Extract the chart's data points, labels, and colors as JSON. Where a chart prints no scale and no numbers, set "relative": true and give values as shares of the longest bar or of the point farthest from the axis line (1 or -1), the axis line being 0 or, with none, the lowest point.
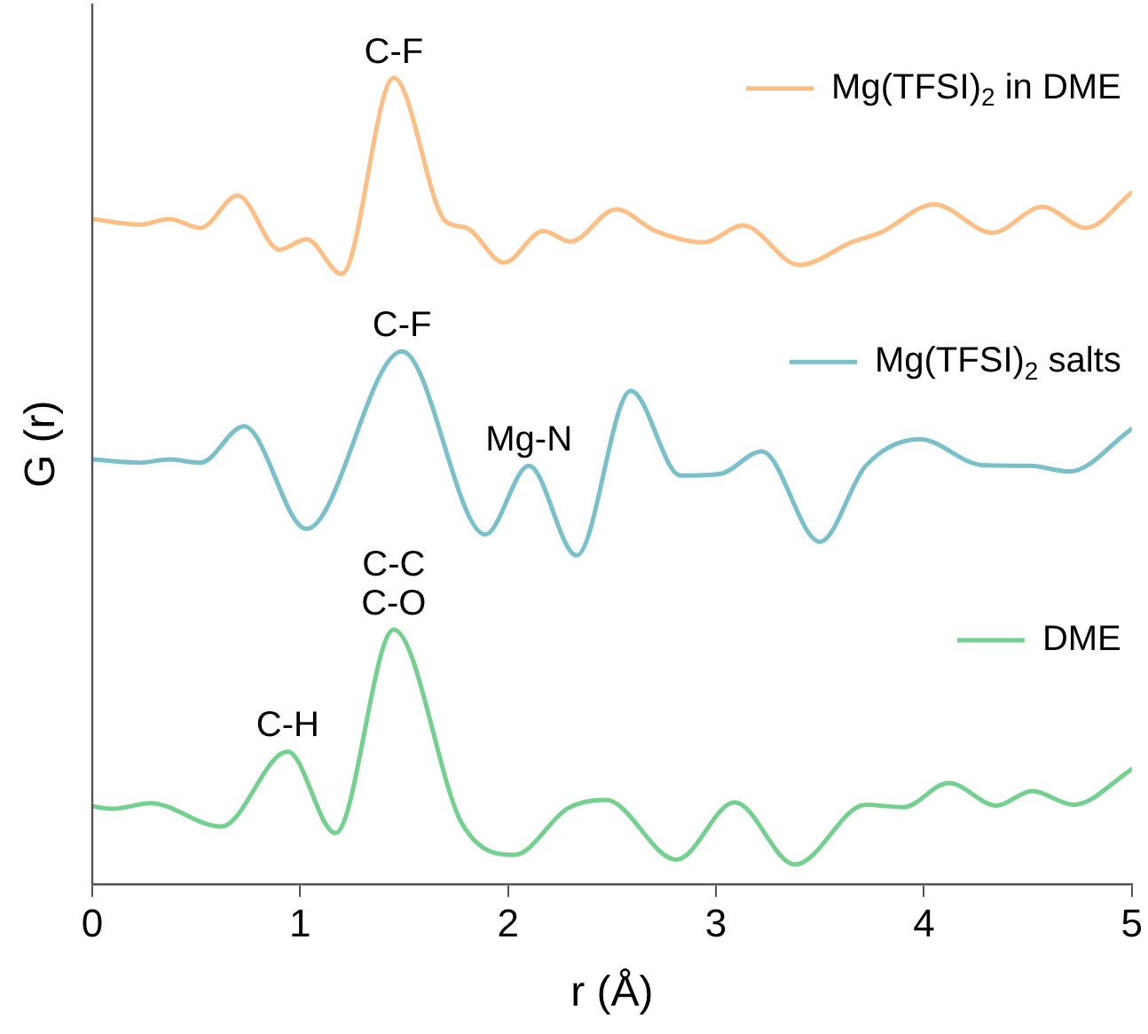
{
  "chart_data": {
    "type": "line",
    "relative": true,
    "xlabel": "r (Å)",
    "ylabel": "G (r)",
    "xlim": [
      0,
      5
    ],
    "xticks": [
      0,
      1,
      2,
      3,
      4,
      5
    ],
    "legend": "right",
    "marker": "none",
    "line_style": "solid",
    "series": [
      {
        "name": "Mg(TFSI)$_{2}$ in DME",
        "color": "#fdbf86",
        "x": [
          0,
          0.23,
          0.37,
          0.52,
          0.7,
          0.9,
          1.03,
          1.2,
          1.45,
          1.7,
          1.8,
          1.98,
          2.17,
          2.3,
          2.52,
          2.71,
          2.94,
          3.13,
          3.4,
          3.66,
          3.79,
          4.05,
          4.33,
          4.57,
          4.78,
          5.0
        ],
        "values": [
          0.825,
          0.818,
          0.825,
          0.814,
          0.854,
          0.787,
          0.8,
          0.757,
          1.0,
          0.822,
          0.814,
          0.771,
          0.81,
          0.797,
          0.837,
          0.81,
          0.796,
          0.817,
          0.768,
          0.797,
          0.808,
          0.843,
          0.808,
          0.84,
          0.814,
          0.858
        ]
      },
      {
        "name": "Mg(TFSI)$_{2}$ salts",
        "color": "#7ac0ca",
        "x": [
          0,
          0.23,
          0.37,
          0.52,
          0.73,
          1.03,
          1.49,
          1.89,
          2.1,
          2.33,
          2.59,
          2.83,
          3.02,
          3.22,
          3.5,
          3.72,
          3.98,
          4.28,
          4.51,
          4.7,
          5.0
        ],
        "values": [
          0.527,
          0.523,
          0.527,
          0.523,
          0.568,
          0.441,
          0.661,
          0.434,
          0.519,
          0.408,
          0.612,
          0.507,
          0.509,
          0.537,
          0.425,
          0.519,
          0.552,
          0.52,
          0.519,
          0.512,
          0.565
        ]
      },
      {
        "name": "DME",
        "color": "#74d08f",
        "x": [
          0,
          0.1,
          0.28,
          0.62,
          0.94,
          1.17,
          1.45,
          1.78,
          2.03,
          2.29,
          2.47,
          2.81,
          3.09,
          3.38,
          3.72,
          3.9,
          4.12,
          4.35,
          4.52,
          4.72,
          5.0
        ],
        "values": [
          0.097,
          0.094,
          0.101,
          0.072,
          0.165,
          0.064,
          0.316,
          0.075,
          0.037,
          0.095,
          0.105,
          0.031,
          0.102,
          0.025,
          0.099,
          0.096,
          0.126,
          0.098,
          0.116,
          0.099,
          0.143
        ]
      }
    ],
    "annotations": [
      {
        "text": "C-F",
        "x": 1.45,
        "y": 1.0
      },
      {
        "text": "C-F",
        "x": 1.49,
        "y": 0.661
      },
      {
        "text": "Mg-N",
        "x": 2.1,
        "y": 0.519
      },
      {
        "text": "C-H",
        "x": 0.94,
        "y": 0.165
      },
      {
        "text": "C-O",
        "x": 1.45,
        "y": 0.316
      },
      {
        "text": "C-C",
        "x": 1.45,
        "y": 0.316
      }
    ]
  }
}
